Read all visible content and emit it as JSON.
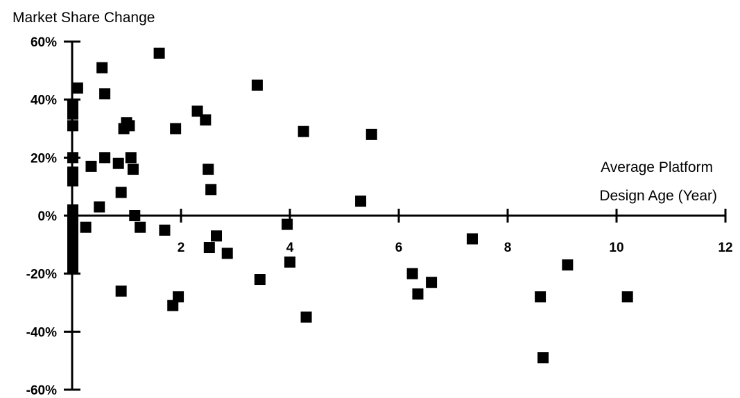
{
  "chart_data": {
    "type": "scatter",
    "ylabel": "Market Share Change",
    "xlabel": [
      "Average Platform",
      "Design Age (Year)"
    ],
    "xlim": [
      0,
      12
    ],
    "ylim": [
      -60,
      60
    ],
    "x_ticks": [
      0,
      2,
      4,
      6,
      8,
      10,
      12
    ],
    "x_tick_labels": [
      "",
      "2",
      "4",
      "6",
      "8",
      "10",
      "12"
    ],
    "y_ticks": [
      60,
      40,
      20,
      0,
      -20,
      -40,
      -60
    ],
    "y_tick_labels": [
      "60%",
      "40%",
      "20%",
      "0%",
      "-20%",
      "-40%",
      "-60%"
    ],
    "grid": false,
    "marker": "square",
    "color": "#000000",
    "points": [
      {
        "x": 0.0,
        "y": 38
      },
      {
        "x": 0.0,
        "y": 35
      },
      {
        "x": 0.0,
        "y": 31
      },
      {
        "x": 0.0,
        "y": 20
      },
      {
        "x": 0.0,
        "y": 15
      },
      {
        "x": 0.0,
        "y": 12
      },
      {
        "x": 0.0,
        "y": 2
      },
      {
        "x": 0.0,
        "y": -1
      },
      {
        "x": 0.0,
        "y": -4
      },
      {
        "x": 0.0,
        "y": -7
      },
      {
        "x": 0.0,
        "y": -10
      },
      {
        "x": 0.0,
        "y": -13
      },
      {
        "x": 0.0,
        "y": -16
      },
      {
        "x": 0.0,
        "y": -18
      },
      {
        "x": 0.1,
        "y": 44
      },
      {
        "x": 0.25,
        "y": -4
      },
      {
        "x": 0.35,
        "y": 17
      },
      {
        "x": 0.5,
        "y": 3
      },
      {
        "x": 0.55,
        "y": 51
      },
      {
        "x": 0.6,
        "y": 42
      },
      {
        "x": 0.6,
        "y": 20
      },
      {
        "x": 0.85,
        "y": 18
      },
      {
        "x": 0.9,
        "y": 8
      },
      {
        "x": 0.9,
        "y": -26
      },
      {
        "x": 0.95,
        "y": 30
      },
      {
        "x": 1.0,
        "y": 32
      },
      {
        "x": 1.05,
        "y": 31
      },
      {
        "x": 1.08,
        "y": 20
      },
      {
        "x": 1.12,
        "y": 16
      },
      {
        "x": 1.15,
        "y": 0
      },
      {
        "x": 1.25,
        "y": -4
      },
      {
        "x": 1.6,
        "y": 56
      },
      {
        "x": 1.7,
        "y": -5
      },
      {
        "x": 1.85,
        "y": -31
      },
      {
        "x": 1.9,
        "y": 30
      },
      {
        "x": 1.95,
        "y": -28
      },
      {
        "x": 2.3,
        "y": 36
      },
      {
        "x": 2.45,
        "y": 33
      },
      {
        "x": 2.5,
        "y": 16
      },
      {
        "x": 2.52,
        "y": -11
      },
      {
        "x": 2.55,
        "y": 9
      },
      {
        "x": 2.65,
        "y": -7
      },
      {
        "x": 2.85,
        "y": -13
      },
      {
        "x": 3.4,
        "y": 45
      },
      {
        "x": 3.45,
        "y": -22
      },
      {
        "x": 3.95,
        "y": -3
      },
      {
        "x": 4.0,
        "y": -16
      },
      {
        "x": 4.25,
        "y": 29
      },
      {
        "x": 4.3,
        "y": -35
      },
      {
        "x": 5.3,
        "y": 5
      },
      {
        "x": 5.5,
        "y": 28
      },
      {
        "x": 6.25,
        "y": -20
      },
      {
        "x": 6.35,
        "y": -27
      },
      {
        "x": 6.6,
        "y": -23
      },
      {
        "x": 7.35,
        "y": -8
      },
      {
        "x": 8.6,
        "y": -28
      },
      {
        "x": 8.65,
        "y": -49
      },
      {
        "x": 9.1,
        "y": -17
      },
      {
        "x": 10.2,
        "y": -28
      }
    ]
  }
}
